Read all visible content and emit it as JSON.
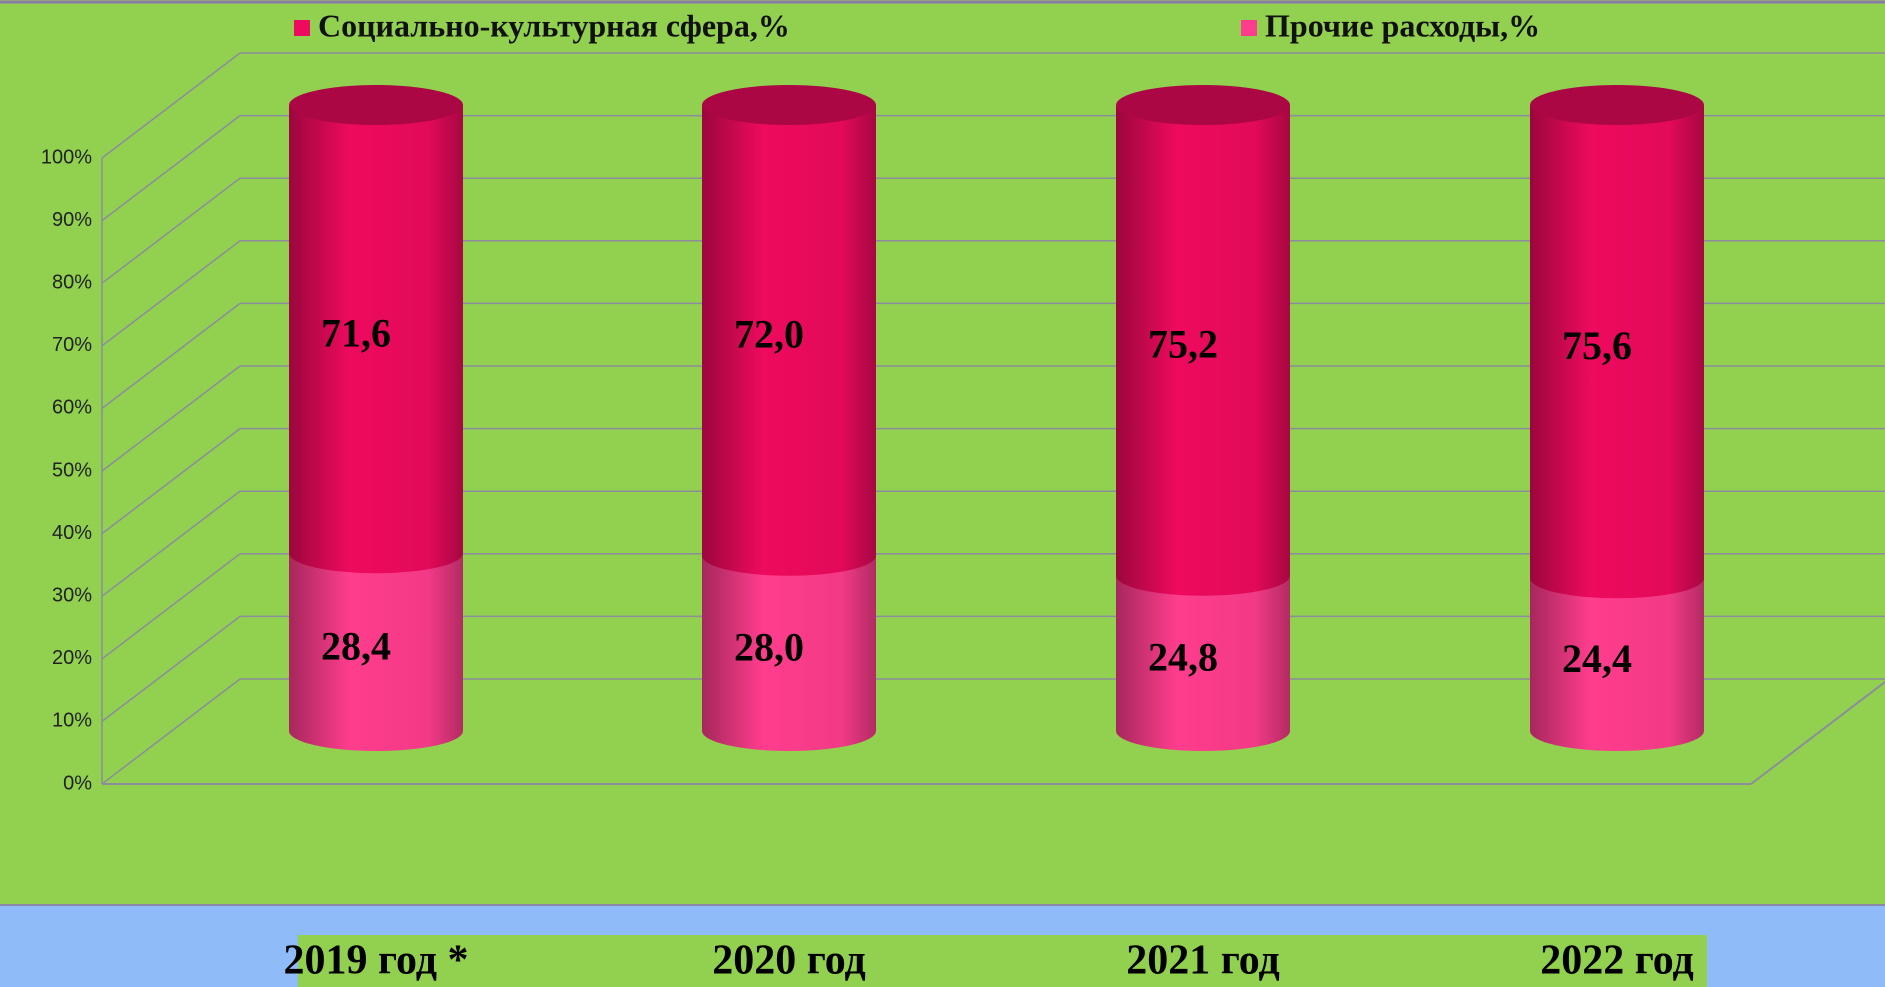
{
  "chart_data": {
    "type": "bar3d_cylinder_stacked",
    "categories": [
      "2019 год *",
      "2020 год",
      "2021 год",
      "2022 год"
    ],
    "series": [
      {
        "name": "Социально-культурная сфера,%",
        "color": "#ee0a5e",
        "values": [
          71.6,
          72.0,
          75.2,
          75.6
        ],
        "value_labels": [
          "71,6",
          "72,0",
          "75,2",
          "75,6"
        ]
      },
      {
        "name": "Прочие расходы,%",
        "color": "#ff3d8d",
        "values": [
          28.4,
          28.0,
          24.8,
          24.4
        ],
        "value_labels": [
          "28,4",
          "28,0",
          "24,8",
          "24,4"
        ]
      }
    ],
    "ylim": [
      0,
      100
    ],
    "yticks": [
      {
        "value": 0,
        "label": "0%"
      },
      {
        "value": 10,
        "label": "10%"
      },
      {
        "value": 20,
        "label": "20%"
      },
      {
        "value": 30,
        "label": "30%"
      },
      {
        "value": 40,
        "label": "40%"
      },
      {
        "value": 50,
        "label": "50%"
      },
      {
        "value": 60,
        "label": "60%"
      },
      {
        "value": 70,
        "label": "70%"
      },
      {
        "value": 80,
        "label": "80%"
      },
      {
        "value": 90,
        "label": "90%"
      },
      {
        "value": 100,
        "label": "100%"
      }
    ],
    "grid": true,
    "legend": "top"
  }
}
